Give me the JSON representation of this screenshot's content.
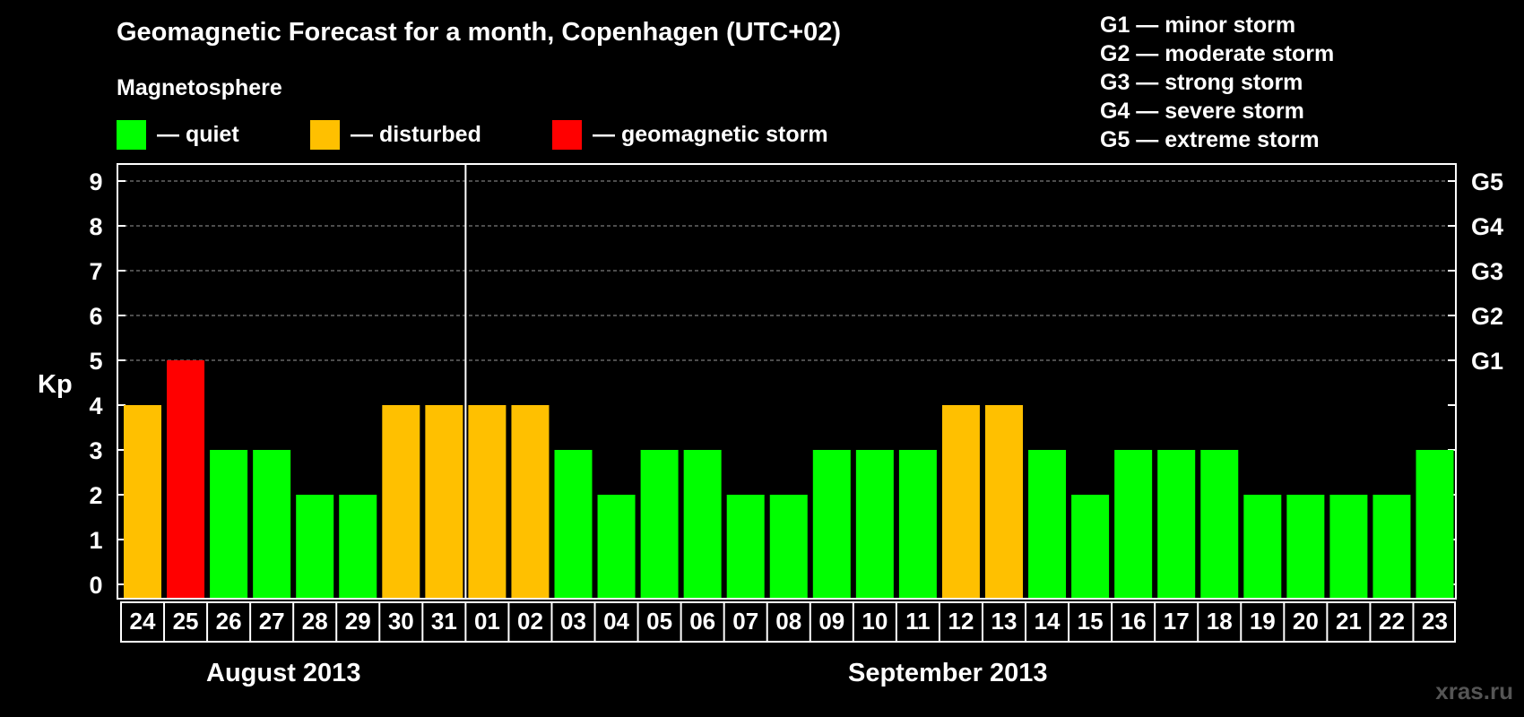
{
  "header": {
    "title": "Geomagnetic Forecast for a month, Copenhagen (UTC+02)",
    "subtitle": "Magnetosphere"
  },
  "legend": [
    {
      "label": "— quiet",
      "color": "#00ff00"
    },
    {
      "label": "— disturbed",
      "color": "#ffc000"
    },
    {
      "label": "— geomagnetic storm",
      "color": "#ff0000"
    }
  ],
  "storm_scale": [
    "G1 — minor storm",
    "G2 — moderate storm",
    "G3 — strong storm",
    "G4 — severe storm",
    "G5 — extreme storm"
  ],
  "months": {
    "first": "August 2013",
    "second": "September 2013"
  },
  "watermark": "xras.ru",
  "colors": {
    "quiet": "#00ff00",
    "disturbed": "#ffc000",
    "storm": "#ff0000",
    "background": "#000000",
    "axis": "#ffffff",
    "grid": "#9a9a9a"
  },
  "chart_data": {
    "type": "bar",
    "ylabel": "Kp",
    "ylim": [
      0,
      9
    ],
    "yticks": [
      "0",
      "1",
      "2",
      "3",
      "4",
      "5",
      "6",
      "7",
      "8",
      "9"
    ],
    "right_ticks": [
      {
        "value": 5,
        "label": "G1"
      },
      {
        "value": 6,
        "label": "G2"
      },
      {
        "value": 7,
        "label": "G3"
      },
      {
        "value": 8,
        "label": "G4"
      },
      {
        "value": 9,
        "label": "G5"
      }
    ],
    "categories": [
      "24",
      "25",
      "26",
      "27",
      "28",
      "29",
      "30",
      "31",
      "01",
      "02",
      "03",
      "04",
      "05",
      "06",
      "07",
      "08",
      "09",
      "10",
      "11",
      "12",
      "13",
      "14",
      "15",
      "16",
      "17",
      "18",
      "19",
      "20",
      "21",
      "22",
      "23"
    ],
    "values": [
      4,
      5,
      3,
      3,
      2,
      2,
      4,
      4,
      4,
      4,
      3,
      2,
      3,
      3,
      2,
      2,
      3,
      3,
      3,
      4,
      4,
      3,
      2,
      3,
      3,
      3,
      2,
      2,
      2,
      2,
      3
    ],
    "levels": [
      "disturbed",
      "storm",
      "quiet",
      "quiet",
      "quiet",
      "quiet",
      "disturbed",
      "disturbed",
      "disturbed",
      "disturbed",
      "quiet",
      "quiet",
      "quiet",
      "quiet",
      "quiet",
      "quiet",
      "quiet",
      "quiet",
      "quiet",
      "disturbed",
      "disturbed",
      "quiet",
      "quiet",
      "quiet",
      "quiet",
      "quiet",
      "quiet",
      "quiet",
      "quiet",
      "quiet",
      "quiet"
    ],
    "month_boundary_after": "31",
    "grid": true
  }
}
